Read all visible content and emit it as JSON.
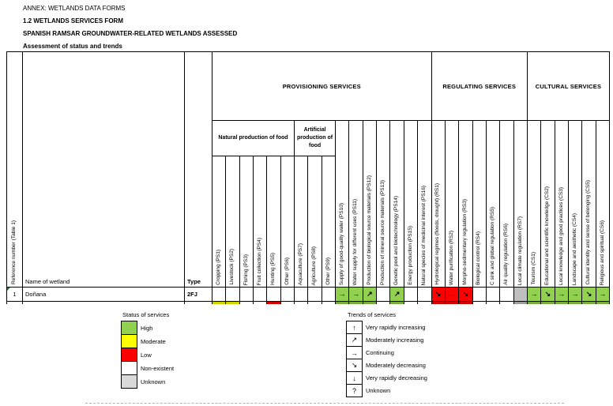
{
  "doc_header": {
    "line1": "ANNEX: WETLANDS DATA FORMS",
    "line2": "1.2 WETLANDS SERVICES FORM",
    "line3": "SPANISH RAMSAR GROUNDWATER-RELATED WETLANDS ASSESSED",
    "line4": "Assessment of status and trends"
  },
  "palette": {
    "high": "#92D050",
    "moderate": "#FFFF00",
    "low": "#FF0000",
    "non-existent": "#FFFFFF",
    "unknown": "#BFBFBF"
  },
  "trend_glyphs": {
    "up": "↑",
    "up-right": "↗",
    "right": "→",
    "down-right": "↘",
    "down": "↓",
    "unknown": "?"
  },
  "table": {
    "left_headers": {
      "reference": "Reference number (Table 1)",
      "name": "Name of wetland",
      "type": "Type"
    },
    "groups": [
      {
        "label": "PROVISIONING SERVICES",
        "span": 16
      },
      {
        "label": "REGULATING SERVICES",
        "span": 7
      },
      {
        "label": "CULTURAL SERVICES",
        "span": 6
      }
    ],
    "subgroups": [
      {
        "label": "Natural production of food",
        "start": 0,
        "span": 6
      },
      {
        "label": "Artificial production of food",
        "start": 6,
        "span": 3
      }
    ],
    "columns": [
      {
        "code": "PS1",
        "label": "Cropping (PS1)",
        "tall": false
      },
      {
        "code": "PS2",
        "label": "Livestock (PS2)",
        "tall": false
      },
      {
        "code": "PS3",
        "label": "Fishing (PS3)",
        "tall": false
      },
      {
        "code": "PS4",
        "label": "Fruit collection (PS4)",
        "tall": false
      },
      {
        "code": "PS5",
        "label": "Hunting (PS5)",
        "tall": false
      },
      {
        "code": "PS6",
        "label": "Other (PS6)",
        "tall": false
      },
      {
        "code": "PS7",
        "label": "Aquaculture (PS7)",
        "tall": false
      },
      {
        "code": "PS8",
        "label": "Agriculture (PS8)",
        "tall": false
      },
      {
        "code": "PS9",
        "label": "Other (PS9)",
        "tall": false
      },
      {
        "code": "PS10",
        "label": "Supply of good-quality water (PS10)",
        "tall": true
      },
      {
        "code": "PS11",
        "label": "Water supply for different uses (PS11)",
        "tall": true
      },
      {
        "code": "PS12",
        "label": "Production of biological source materials (PS12)",
        "tall": true
      },
      {
        "code": "PS13",
        "label": "Production of mineral source materials (PS13)",
        "tall": true
      },
      {
        "code": "PS14",
        "label": "Genetic pool and biotechnology (PS14)",
        "tall": true
      },
      {
        "code": "PS15",
        "label": "Energy production (PS15)",
        "tall": true
      },
      {
        "code": "PS16",
        "label": "Natural species of medicinal interest (PS16)",
        "tall": true
      },
      {
        "code": "RS1",
        "label": "Hydrological regimes (floods, drought) (RS1)",
        "tall": true
      },
      {
        "code": "RS2",
        "label": "Water purification (RS2)",
        "tall": true
      },
      {
        "code": "RS3",
        "label": "Morpho-sedimentary regulation (RS3)",
        "tall": true
      },
      {
        "code": "RS4",
        "label": "Biological control (RS4)",
        "tall": true
      },
      {
        "code": "RS5",
        "label": "C sink and global regulation (RS5)",
        "tall": true
      },
      {
        "code": "RS6",
        "label": "Air quality regulation (RS6)",
        "tall": true
      },
      {
        "code": "RS7",
        "label": "Local climate regulation (RS7)",
        "tall": true
      },
      {
        "code": "CS1",
        "label": "Tourism (CS1)",
        "tall": true
      },
      {
        "code": "CS2",
        "label": "Educational and scientific knowledge (CS2)",
        "tall": true
      },
      {
        "code": "CS3",
        "label": "Local knowledge and good practices (CS3)",
        "tall": true
      },
      {
        "code": "CS4",
        "label": "Landscape and aesthetic (CS4)",
        "tall": true
      },
      {
        "code": "CS5",
        "label": "Cultural identity and sense of belonging (CS5)",
        "tall": true
      },
      {
        "code": "CS6",
        "label": "Religious and spiritual (CS6)",
        "tall": true
      }
    ],
    "row": {
      "reference": "1",
      "name": "Doñana",
      "type": "2FJ",
      "cells": [
        {
          "status": "non-existent",
          "trend": null
        },
        {
          "status": "non-existent",
          "trend": null
        },
        {
          "status": "non-existent",
          "trend": null
        },
        {
          "status": "non-existent",
          "trend": null
        },
        {
          "status": "non-existent",
          "trend": null
        },
        {
          "status": "non-existent",
          "trend": null
        },
        {
          "status": "non-existent",
          "trend": null
        },
        {
          "status": "non-existent",
          "trend": null
        },
        {
          "status": "non-existent",
          "trend": null
        },
        {
          "status": "high",
          "trend": "right"
        },
        {
          "status": "high",
          "trend": "right"
        },
        {
          "status": "high",
          "trend": "up-right"
        },
        {
          "status": "non-existent",
          "trend": null
        },
        {
          "status": "high",
          "trend": "up-right"
        },
        {
          "status": "non-existent",
          "trend": null
        },
        {
          "status": "non-existent",
          "trend": null
        },
        {
          "status": "low",
          "trend": "down-right"
        },
        {
          "status": "low",
          "trend": "right"
        },
        {
          "status": "low",
          "trend": "down-right"
        },
        {
          "status": "non-existent",
          "trend": null
        },
        {
          "status": "non-existent",
          "trend": null
        },
        {
          "status": "non-existent",
          "trend": null
        },
        {
          "status": "unknown",
          "trend": null
        },
        {
          "status": "high",
          "trend": "right"
        },
        {
          "status": "high",
          "trend": "down-right"
        },
        {
          "status": "high",
          "trend": "right"
        },
        {
          "status": "high",
          "trend": "right"
        },
        {
          "status": "high",
          "trend": "down-right"
        },
        {
          "status": "high",
          "trend": "right"
        }
      ]
    },
    "next_row_statuses": [
      "moderate",
      "moderate",
      "non-existent",
      "non-existent",
      "low",
      "non-existent",
      "non-existent",
      "non-existent",
      "non-existent",
      "high",
      "high",
      "high",
      "non-existent",
      "high",
      "non-existent",
      "non-existent",
      "low",
      "low",
      "low",
      "non-existent",
      "non-existent",
      "non-existent",
      "unknown",
      "high",
      "high",
      "high",
      "high",
      "high",
      "high"
    ]
  },
  "status_legend": {
    "title": "Status of services",
    "items": [
      {
        "label": "High",
        "status": "high"
      },
      {
        "label": "Moderate",
        "status": "moderate"
      },
      {
        "label": "Low",
        "status": "low"
      },
      {
        "label": "Non-existent",
        "status": "non-existent"
      },
      {
        "label": "Unknown",
        "status": "unknown-light"
      }
    ],
    "unknown_light_color": "#D9D9D9"
  },
  "trends_legend": {
    "title": "Trends of services",
    "items": [
      {
        "symbol": "↑",
        "label": "Very rapidly increasing"
      },
      {
        "symbol": "↗",
        "label": "Moderately increasing"
      },
      {
        "symbol": "→",
        "label": "Continuing"
      },
      {
        "symbol": "↘",
        "label": "Moderately decreasing"
      },
      {
        "symbol": "↓",
        "label": "Very rapidly decreasing"
      },
      {
        "symbol": "?",
        "label": "Unknown"
      }
    ]
  }
}
